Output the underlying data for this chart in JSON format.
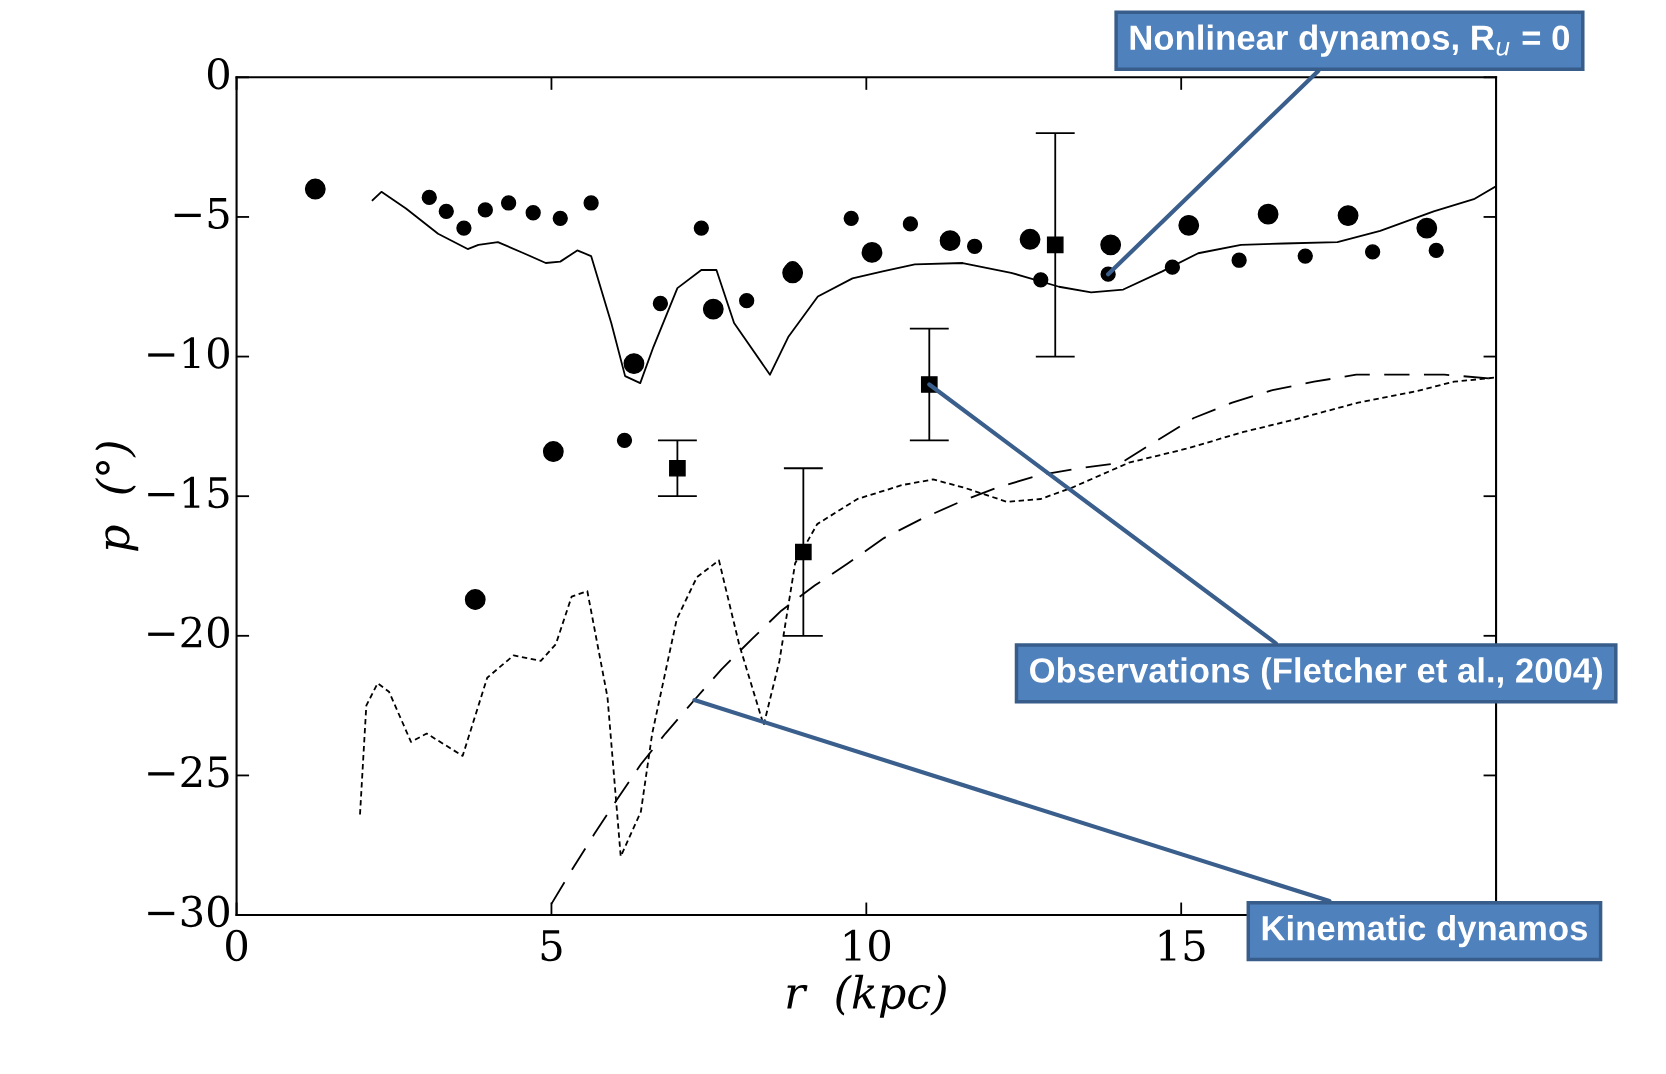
{
  "chart_data": {
    "type": "scatter",
    "xlabel": "r  (kpc)",
    "ylabel": "p  (°)",
    "xlim": [
      0,
      20
    ],
    "ylim": [
      -30,
      0
    ],
    "xticks": [
      0,
      5,
      10,
      15
    ],
    "yticks": [
      {
        "value": 0,
        "label": "0"
      },
      {
        "value": -5,
        "label": "−5"
      },
      {
        "value": -10,
        "label": "−10"
      },
      {
        "value": -15,
        "label": "−15"
      },
      {
        "value": -20,
        "label": "−20"
      },
      {
        "value": -25,
        "label": "−25"
      },
      {
        "value": -30,
        "label": "−30"
      }
    ],
    "grid": false,
    "legend": false,
    "series": [
      {
        "type": "line",
        "line_style": "solid",
        "color": "#000000",
        "x": [
          2.16,
          2.3,
          2.69,
          3.2,
          3.67,
          3.84,
          4.15,
          4.56,
          4.91,
          5.14,
          5.41,
          5.63,
          5.95,
          6.17,
          6.41,
          6.62,
          7.0,
          7.38,
          7.62,
          7.9,
          8.47,
          8.76,
          9.23,
          9.78,
          10.26,
          10.77,
          11.53,
          12.3,
          13.06,
          13.57,
          14.08,
          14.7,
          15.27,
          15.95,
          16.63,
          17.48,
          18.16,
          19.01,
          19.66,
          20.0
        ],
        "values": [
          -4.4,
          -4.1,
          -4.7,
          -5.6,
          -6.15,
          -6.0,
          -5.9,
          -6.3,
          -6.65,
          -6.6,
          -6.2,
          -6.4,
          -8.8,
          -10.7,
          -10.95,
          -9.65,
          -7.55,
          -6.9,
          -6.9,
          -8.8,
          -10.65,
          -9.3,
          -7.85,
          -7.2,
          -6.95,
          -6.7,
          -6.65,
          -7.0,
          -7.5,
          -7.7,
          -7.6,
          -6.95,
          -6.3,
          -6.0,
          -5.95,
          -5.9,
          -5.5,
          -4.8,
          -4.35,
          -3.9
        ]
      },
      {
        "type": "line",
        "line_style": "dotted",
        "color": "#000000",
        "x": [
          1.96,
          2.06,
          2.24,
          2.42,
          2.77,
          3.02,
          3.59,
          3.98,
          4.4,
          4.83,
          5.07,
          5.32,
          5.57,
          5.89,
          6.1,
          6.42,
          6.6,
          6.99,
          7.31,
          7.66,
          7.98,
          8.37,
          8.62,
          8.87,
          9.22,
          9.86,
          10.57,
          11.06,
          11.56,
          12.23,
          12.77,
          13.26,
          14.17,
          15.08,
          15.99,
          16.9,
          17.81,
          18.72,
          19.33,
          20.0
        ],
        "values": [
          -26.4,
          -22.5,
          -21.7,
          -22.0,
          -23.8,
          -23.5,
          -24.3,
          -21.5,
          -20.7,
          -20.9,
          -20.3,
          -18.6,
          -18.4,
          -22.2,
          -27.9,
          -26.3,
          -23.5,
          -19.4,
          -17.9,
          -17.3,
          -20.3,
          -23.2,
          -20.9,
          -17.4,
          -16.0,
          -15.1,
          -14.6,
          -14.4,
          -14.7,
          -15.2,
          -15.1,
          -14.7,
          -13.8,
          -13.3,
          -12.7,
          -12.2,
          -11.65,
          -11.25,
          -10.9,
          -10.75
        ]
      },
      {
        "type": "line",
        "line_style": "dashed",
        "color": "#000000",
        "x": [
          5.0,
          5.32,
          5.68,
          6.03,
          6.42,
          6.81,
          7.27,
          7.7,
          8.19,
          8.65,
          9.18,
          9.71,
          10.28,
          10.89,
          11.49,
          12.07,
          12.74,
          13.38,
          14.05,
          14.62,
          15.2,
          15.81,
          16.45,
          17.11,
          17.78,
          18.45,
          19.18,
          20.0
        ],
        "values": [
          -29.6,
          -28.4,
          -27.1,
          -25.9,
          -24.6,
          -23.5,
          -22.3,
          -21.2,
          -20.1,
          -19.1,
          -18.2,
          -17.4,
          -16.5,
          -15.8,
          -15.2,
          -14.7,
          -14.25,
          -14.0,
          -13.8,
          -13.0,
          -12.2,
          -11.65,
          -11.2,
          -10.9,
          -10.65,
          -10.65,
          -10.65,
          -10.8
        ]
      },
      {
        "marker": "circle",
        "color": "#000000",
        "x": [
          1.25,
          3.79,
          5.03,
          6.31,
          7.57,
          8.83,
          10.09,
          11.33,
          12.6,
          13.88,
          15.12,
          16.38,
          17.65,
          18.9
        ],
        "values": [
          -4.0,
          -18.7,
          -13.4,
          -10.25,
          -8.3,
          -7.0,
          -6.27,
          -5.85,
          -5.8,
          -6.0,
          -5.3,
          -4.9,
          -4.95,
          -5.4
        ]
      },
      {
        "marker": "circle",
        "color": "#000000",
        "x": [
          3.06,
          3.33,
          3.61,
          3.95,
          4.32,
          4.71,
          5.14,
          5.63,
          6.16,
          6.73,
          7.38,
          8.1,
          8.83,
          9.76,
          10.7,
          11.72,
          12.77,
          13.84,
          14.86,
          15.92,
          16.97,
          18.04,
          19.05
        ],
        "values": [
          -4.3,
          -4.8,
          -5.4,
          -4.75,
          -4.5,
          -4.85,
          -5.05,
          -4.5,
          -13.0,
          -8.1,
          -5.4,
          -8.0,
          -6.85,
          -5.05,
          -5.25,
          -6.05,
          -7.25,
          -7.05,
          -6.8,
          -6.55,
          -6.4,
          -6.25,
          -6.2
        ]
      },
      {
        "marker": "square",
        "color": "#000000",
        "x": [
          7,
          9,
          11,
          13
        ],
        "values": [
          -14,
          -17,
          -11,
          -6
        ],
        "errors": [
          1,
          3,
          2,
          4
        ]
      }
    ],
    "annotations": [
      {
        "text": "Nonlinear dynamos, R$_{u}$ = 0",
        "x": 13.84,
        "y": -7.05
      },
      {
        "text": "Observations (Fletcher et al., 2004)",
        "x": 11,
        "y": -11
      },
      {
        "text": "Kinematic dynamos",
        "x": 7.27,
        "y": -22.3
      }
    ]
  }
}
